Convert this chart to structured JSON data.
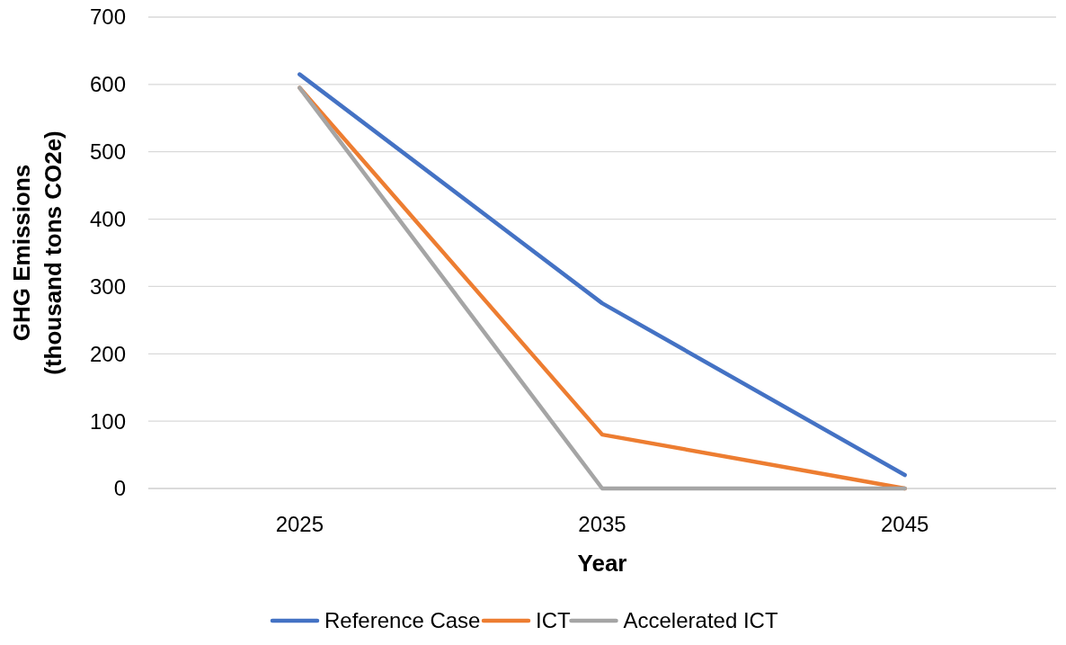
{
  "chart_data": {
    "type": "line",
    "xlabel": "Year",
    "ylabel": "GHG Emissions\n(thousand tons CO2e)",
    "categories": [
      "2025",
      "2035",
      "2045"
    ],
    "series": [
      {
        "name": "Reference Case",
        "color": "#4472c4",
        "values": [
          615,
          275,
          20
        ]
      },
      {
        "name": "ICT",
        "color": "#ed7d31",
        "values": [
          595,
          80,
          0
        ]
      },
      {
        "name": "Accelerated ICT",
        "color": "#a5a5a5",
        "values": [
          595,
          0,
          0
        ]
      }
    ],
    "ylim": [
      0,
      700
    ],
    "yticks": [
      0,
      100,
      200,
      300,
      400,
      500,
      600,
      700
    ],
    "grid": "y",
    "legend": "bottom",
    "marker": "none",
    "line_style": "solid"
  }
}
